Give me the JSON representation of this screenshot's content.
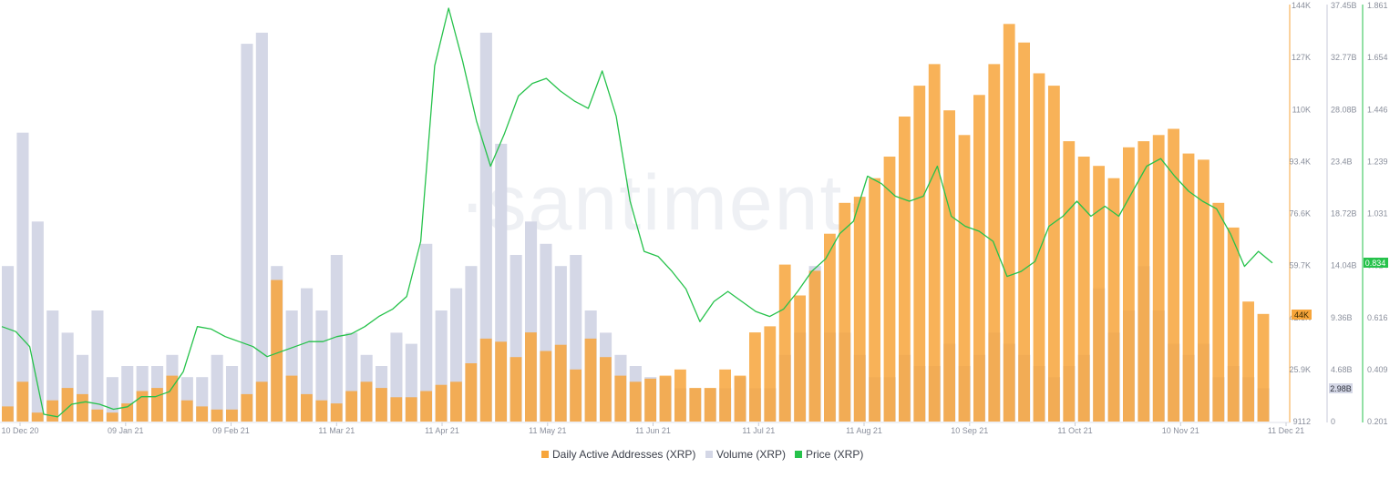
{
  "chart_data": {
    "type": "bar+line",
    "watermark": "·santiment·",
    "x_labels": [
      "10 Dec 20",
      "09 Jan 21",
      "09 Feb 21",
      "11 Mar 21",
      "11 Apr 21",
      "11 May 21",
      "11 Jun 21",
      "11 Jul 21",
      "11 Aug 21",
      "10 Sep 21",
      "11 Oct 21",
      "10 Nov 21",
      "11 Dec 21"
    ],
    "axes": {
      "daa": {
        "name": "Daily Active Addresses (XRP)",
        "ticks": [
          "9112",
          "25.9K",
          "42.8K",
          "59.7K",
          "76.6K",
          "93.4K",
          "110K",
          "127K",
          "144K"
        ],
        "ylim": [
          9112,
          144000
        ],
        "color": "#f7a53b"
      },
      "volume": {
        "name": "Volume (XRP)",
        "ticks": [
          "0",
          "4.68B",
          "9.36B",
          "14.04B",
          "18.72B",
          "23.4B",
          "28.08B",
          "32.77B",
          "37.45B"
        ],
        "ylim": [
          0,
          37.45
        ],
        "unit": "B",
        "color": "#d4d7e6"
      },
      "price": {
        "name": "Price (XRP)",
        "ticks": [
          "0.201",
          "0.409",
          "0.616",
          "0.824",
          "1.031",
          "1.239",
          "1.446",
          "1.654",
          "1.861"
        ],
        "ylim": [
          0.201,
          1.861
        ],
        "color": "#26c24b"
      }
    },
    "current_values": {
      "daa": "44K",
      "volume": "2.98B",
      "price": "0.834"
    },
    "series": {
      "daa": [
        14,
        22,
        12,
        16,
        20,
        18,
        13,
        12,
        15,
        19,
        20,
        24,
        16,
        14,
        13,
        13,
        18,
        22,
        55,
        24,
        18,
        16,
        15,
        19,
        22,
        20,
        17,
        17,
        19,
        21,
        22,
        28,
        36,
        35,
        30,
        38,
        32,
        34,
        26,
        36,
        30,
        24,
        22,
        23,
        24,
        26,
        20,
        20,
        26,
        24,
        38,
        40,
        60,
        50,
        58,
        70,
        80,
        82,
        88,
        95,
        108,
        118,
        125,
        110,
        102,
        115,
        125,
        138,
        132,
        122,
        118,
        100,
        95,
        92,
        88,
        98,
        100,
        102,
        104,
        96,
        94,
        80,
        72,
        48,
        44
      ],
      "volume": [
        14,
        26,
        18,
        10,
        8,
        6,
        10,
        4,
        5,
        5,
        5,
        6,
        4,
        4,
        6,
        5,
        34,
        35,
        14,
        10,
        12,
        10,
        15,
        8,
        6,
        5,
        8,
        7,
        16,
        10,
        12,
        14,
        35,
        25,
        15,
        18,
        16,
        14,
        15,
        10,
        8,
        6,
        5,
        4,
        4,
        3,
        3,
        3,
        3,
        4,
        3,
        3,
        6,
        8,
        14,
        8,
        8,
        6,
        4,
        4,
        6,
        5,
        5,
        7,
        5,
        6,
        8,
        7,
        6,
        5,
        4,
        5,
        6,
        12,
        8,
        10,
        14,
        10,
        7,
        6,
        7,
        4,
        5,
        4,
        3
      ],
      "price": [
        0.58,
        0.56,
        0.5,
        0.23,
        0.22,
        0.27,
        0.28,
        0.27,
        0.25,
        0.26,
        0.3,
        0.3,
        0.32,
        0.4,
        0.58,
        0.57,
        0.54,
        0.52,
        0.5,
        0.46,
        0.48,
        0.5,
        0.52,
        0.52,
        0.54,
        0.55,
        0.58,
        0.62,
        0.65,
        0.7,
        0.92,
        1.62,
        1.85,
        1.64,
        1.4,
        1.22,
        1.35,
        1.5,
        1.55,
        1.57,
        1.52,
        1.48,
        1.45,
        1.6,
        1.42,
        1.08,
        0.88,
        0.86,
        0.8,
        0.73,
        0.6,
        0.68,
        0.72,
        0.68,
        0.64,
        0.62,
        0.65,
        0.72,
        0.8,
        0.85,
        0.95,
        1.0,
        1.18,
        1.15,
        1.1,
        1.08,
        1.1,
        1.22,
        1.02,
        0.98,
        0.96,
        0.92,
        0.78,
        0.8,
        0.84,
        0.98,
        1.02,
        1.08,
        1.02,
        1.06,
        1.02,
        1.12,
        1.22,
        1.25,
        1.18,
        1.12,
        1.08,
        1.05,
        0.95,
        0.82,
        0.88,
        0.834
      ]
    },
    "legend": [
      "Daily Active Addresses (XRP)",
      "Volume (XRP)",
      "Price (XRP)"
    ],
    "legend_position": "bottom-center",
    "grid": false
  }
}
